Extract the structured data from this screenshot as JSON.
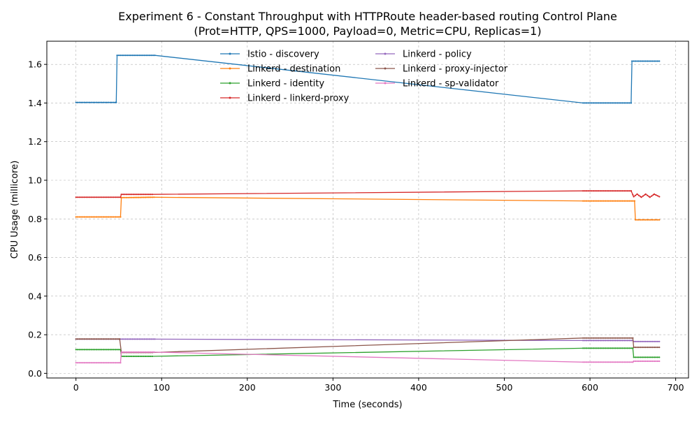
{
  "chart_data": {
    "type": "line",
    "title": "Experiment 6 - Constant Throughput with HTTPRoute header-based routing Control Plane",
    "subtitle": "(Prot=HTTP, QPS=1000, Payload=0, Metric=CPU, Replicas=1)",
    "xlabel": "Time (seconds)",
    "ylabel": "CPU Usage (millicore)",
    "xlim": [
      -34,
      715
    ],
    "ylim": [
      -0.024,
      1.72
    ],
    "xticks": [
      0,
      100,
      200,
      300,
      400,
      500,
      600,
      700
    ],
    "yticks": [
      0.0,
      0.2,
      0.4,
      0.6,
      0.8,
      1.0,
      1.2,
      1.4,
      1.6
    ],
    "xtick_labels": [
      "0",
      "100",
      "200",
      "300",
      "400",
      "500",
      "600",
      "700"
    ],
    "ytick_labels": [
      "0.0",
      "0.2",
      "0.4",
      "0.6",
      "0.8",
      "1.0",
      "1.2",
      "1.4",
      "1.6"
    ],
    "grid": true,
    "legend_position": "top-center",
    "legend_columns": 2,
    "series": [
      {
        "name": "Istio - discovery",
        "color": "#1f77b4",
        "points": [
          [
            0,
            1.403
          ],
          [
            47,
            1.403
          ],
          [
            48,
            1.647
          ],
          [
            92,
            1.647
          ],
          [
            592,
            1.4
          ],
          [
            648,
            1.4
          ],
          [
            649,
            1.617
          ],
          [
            681,
            1.617
          ]
        ]
      },
      {
        "name": "Linkerd - destination",
        "color": "#ff7f0e",
        "points": [
          [
            0,
            0.81
          ],
          [
            52,
            0.81
          ],
          [
            53,
            0.91
          ],
          [
            92,
            0.912
          ],
          [
            592,
            0.893
          ],
          [
            652,
            0.893
          ],
          [
            653,
            0.795
          ],
          [
            681,
            0.795
          ]
        ]
      },
      {
        "name": "Linkerd - identity",
        "color": "#2ca02c",
        "points": [
          [
            0,
            0.123
          ],
          [
            52,
            0.123
          ],
          [
            53,
            0.088
          ],
          [
            90,
            0.088
          ],
          [
            592,
            0.13
          ],
          [
            650,
            0.13
          ],
          [
            651,
            0.083
          ],
          [
            681,
            0.083
          ]
        ]
      },
      {
        "name": "Linkerd - linkerd-proxy",
        "color": "#d62728",
        "points": [
          [
            0,
            0.912
          ],
          [
            52,
            0.912
          ],
          [
            53,
            0.927
          ],
          [
            90,
            0.927
          ],
          [
            592,
            0.945
          ],
          [
            648,
            0.945
          ],
          [
            651,
            0.915
          ],
          [
            655,
            0.928
          ],
          [
            660,
            0.912
          ],
          [
            665,
            0.928
          ],
          [
            670,
            0.912
          ],
          [
            675,
            0.928
          ],
          [
            681,
            0.915
          ]
        ]
      },
      {
        "name": "Linkerd - policy",
        "color": "#9467bd",
        "points": [
          [
            0,
            0.177
          ],
          [
            92,
            0.177
          ],
          [
            592,
            0.17
          ],
          [
            650,
            0.17
          ],
          [
            651,
            0.165
          ],
          [
            681,
            0.165
          ]
        ]
      },
      {
        "name": "Linkerd - proxy-injector",
        "color": "#8c564b",
        "points": [
          [
            0,
            0.178
          ],
          [
            51,
            0.178
          ],
          [
            53,
            0.108
          ],
          [
            90,
            0.108
          ],
          [
            592,
            0.183
          ],
          [
            650,
            0.183
          ],
          [
            651,
            0.135
          ],
          [
            681,
            0.135
          ]
        ]
      },
      {
        "name": "Linkerd - sp-validator",
        "color": "#e377c2",
        "points": [
          [
            0,
            0.055
          ],
          [
            52,
            0.055
          ],
          [
            53,
            0.11
          ],
          [
            92,
            0.11
          ],
          [
            592,
            0.058
          ],
          [
            650,
            0.058
          ],
          [
            651,
            0.063
          ],
          [
            681,
            0.063
          ]
        ]
      }
    ]
  }
}
